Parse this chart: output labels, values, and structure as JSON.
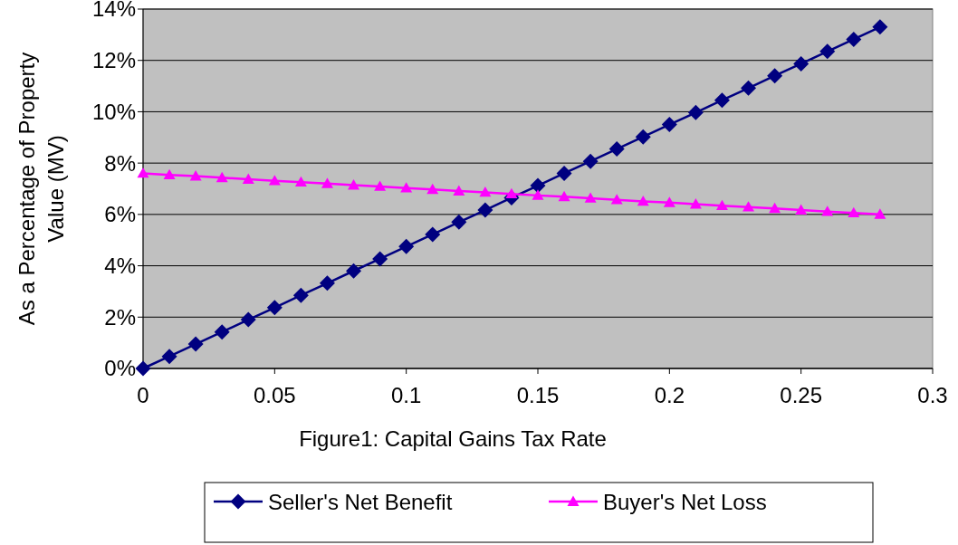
{
  "chart_data": {
    "type": "line",
    "xlabel": "Figure1: Capital Gains Tax Rate",
    "ylabel": "As a Percentage of Property Value (MV)",
    "x": [
      0,
      0.01,
      0.02,
      0.03,
      0.04,
      0.05,
      0.06,
      0.07,
      0.08,
      0.09,
      0.1,
      0.11,
      0.12,
      0.13,
      0.14,
      0.15,
      0.16,
      0.17,
      0.18,
      0.19,
      0.2,
      0.21,
      0.22,
      0.23,
      0.24,
      0.25,
      0.26,
      0.27,
      0.28
    ],
    "series": [
      {
        "name": "Seller's Net Benefit",
        "color": "#000080",
        "marker": "diamond",
        "values": [
          0,
          0.47,
          0.95,
          1.42,
          1.9,
          2.37,
          2.85,
          3.32,
          3.8,
          4.27,
          4.75,
          5.22,
          5.7,
          6.17,
          6.65,
          7.12,
          7.6,
          8.07,
          8.55,
          9.02,
          9.5,
          9.97,
          10.45,
          10.92,
          11.4,
          11.87,
          12.35,
          12.82,
          13.3
        ]
      },
      {
        "name": "Buyer's Net Loss",
        "color": "#ff00ff",
        "marker": "triangle",
        "values": [
          7.6,
          7.54,
          7.49,
          7.43,
          7.37,
          7.31,
          7.26,
          7.2,
          7.14,
          7.09,
          7.03,
          6.97,
          6.91,
          6.86,
          6.8,
          6.74,
          6.69,
          6.63,
          6.57,
          6.51,
          6.46,
          6.4,
          6.34,
          6.29,
          6.23,
          6.17,
          6.11,
          6.06,
          6.0
        ]
      }
    ],
    "xlim": [
      0,
      0.3
    ],
    "xticks": [
      0,
      0.05,
      0.1,
      0.15,
      0.2,
      0.25,
      0.3
    ],
    "ylim": [
      0,
      14
    ],
    "yticks": [
      {
        "value": 0,
        "label": "0%"
      },
      {
        "value": 2,
        "label": "2%"
      },
      {
        "value": 4,
        "label": "4%"
      },
      {
        "value": 6,
        "label": "6%"
      },
      {
        "value": 8,
        "label": "8%"
      },
      {
        "value": 10,
        "label": "10%"
      },
      {
        "value": 12,
        "label": "12%"
      },
      {
        "value": 14,
        "label": "14%"
      }
    ],
    "grid": "y",
    "legend": "bottom",
    "line_style": "solid"
  }
}
